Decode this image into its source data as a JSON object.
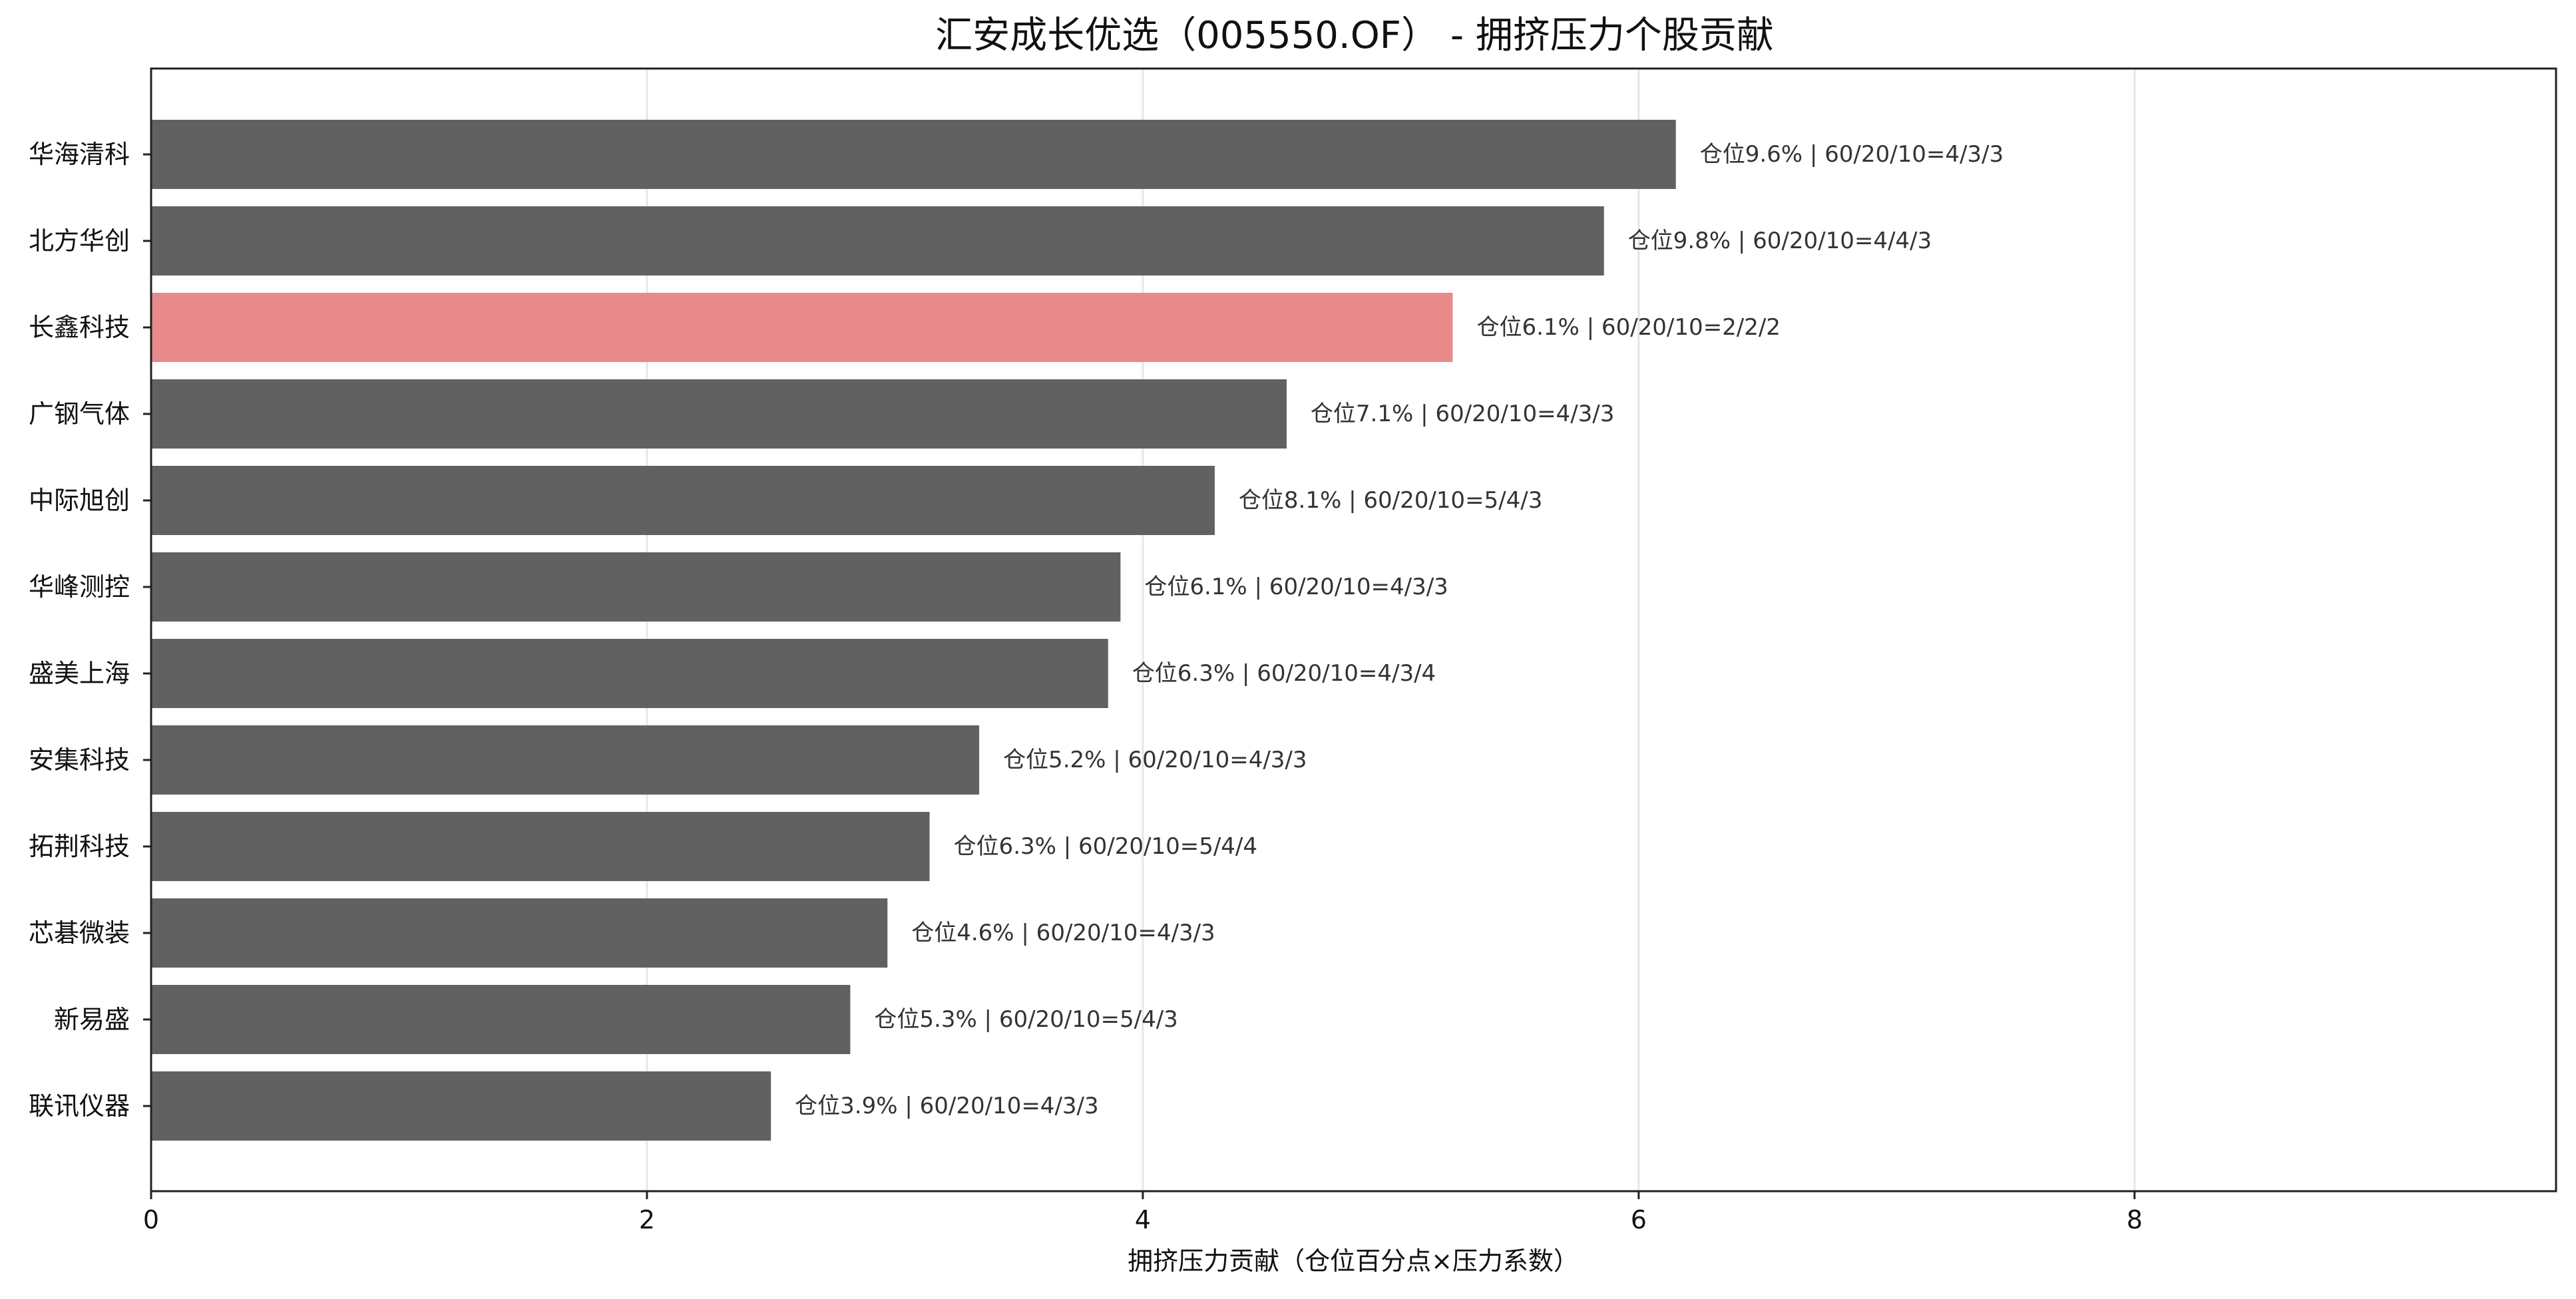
{
  "chart_data": {
    "type": "bar",
    "orientation": "horizontal",
    "title": "汇安成长优选（005550.OF） - 拥挤压力个股贡献",
    "xlabel": "拥挤压力贡献（仓位百分点×压力系数）",
    "ylabel": "",
    "xlim": [
      0,
      9.7
    ],
    "xticks": [
      0,
      2,
      4,
      6,
      8
    ],
    "x_gridlines": true,
    "default_color": "#616161",
    "highlight_color": "#e88a8a",
    "categories": [
      "华海清科",
      "北方华创",
      "长鑫科技",
      "广钢气体",
      "中际旭创",
      "华峰测控",
      "盛美上海",
      "安集科技",
      "拓荆科技",
      "芯碁微装",
      "新易盛",
      "联讯仪器"
    ],
    "values": [
      6.15,
      5.86,
      5.25,
      4.58,
      4.29,
      3.91,
      3.86,
      3.34,
      3.14,
      2.97,
      2.82,
      2.5
    ],
    "highlighted": [
      "长鑫科技"
    ],
    "annotations": [
      "仓位9.6%  |  60/20/10=4/3/3",
      "仓位9.8%  |  60/20/10=4/4/3",
      "仓位6.1%  |  60/20/10=2/2/2",
      "仓位7.1%  |  60/20/10=4/3/3",
      "仓位8.1%  |  60/20/10=5/4/3",
      "仓位6.1%  |  60/20/10=4/3/3",
      "仓位6.3%  |  60/20/10=4/3/4",
      "仓位5.2%  |  60/20/10=4/3/3",
      "仓位6.3%  |  60/20/10=5/4/4",
      "仓位4.6%  |  60/20/10=4/3/3",
      "仓位5.3%  |  60/20/10=5/4/3",
      "仓位3.9%  |  60/20/10=4/3/3"
    ]
  }
}
